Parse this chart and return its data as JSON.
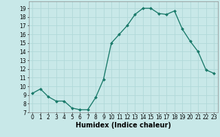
{
  "x": [
    0,
    1,
    2,
    3,
    4,
    5,
    6,
    7,
    8,
    9,
    10,
    11,
    12,
    13,
    14,
    15,
    16,
    17,
    18,
    19,
    20,
    21,
    22,
    23
  ],
  "y": [
    9.2,
    9.7,
    8.8,
    8.3,
    8.3,
    7.5,
    7.3,
    7.3,
    8.7,
    10.8,
    15.0,
    16.0,
    17.0,
    18.3,
    19.0,
    19.0,
    18.4,
    18.3,
    18.7,
    16.6,
    15.2,
    14.0,
    11.9,
    11.5
  ],
  "line_color": "#1a7a6a",
  "marker": "D",
  "marker_size": 2.0,
  "bg_color": "#c8e8e8",
  "grid_color": "#b0d8d8",
  "xlabel": "Humidex (Indice chaleur)",
  "xlabel_fontsize": 7,
  "xlim": [
    -0.5,
    23.5
  ],
  "ylim": [
    7,
    19.8
  ],
  "yticks": [
    7,
    8,
    9,
    10,
    11,
    12,
    13,
    14,
    15,
    16,
    17,
    18,
    19
  ],
  "xticks": [
    0,
    1,
    2,
    3,
    4,
    5,
    6,
    7,
    8,
    9,
    10,
    11,
    12,
    13,
    14,
    15,
    16,
    17,
    18,
    19,
    20,
    21,
    22,
    23
  ],
  "tick_fontsize": 5.5,
  "linewidth": 1.0
}
